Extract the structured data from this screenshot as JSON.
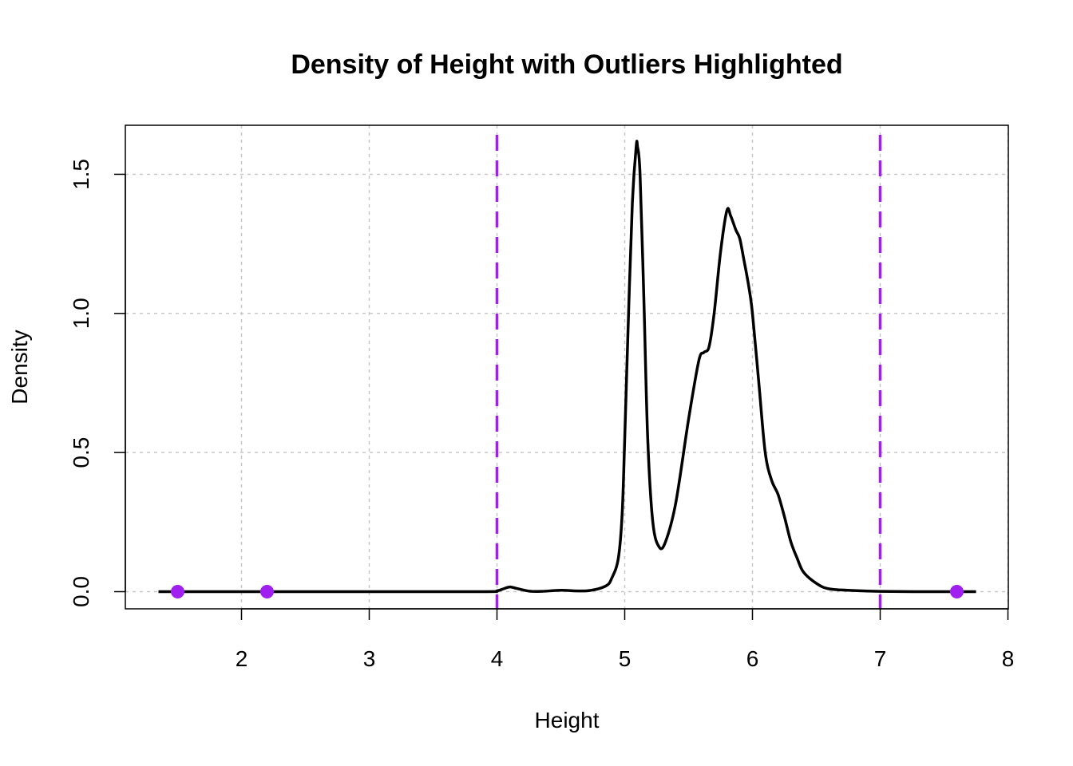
{
  "chart_data": {
    "type": "line",
    "title": "Density of Height with Outliers Highlighted",
    "xlabel": "Height",
    "ylabel": "Density",
    "xlim": [
      1.1,
      8.0
    ],
    "ylim": [
      -0.06,
      1.68
    ],
    "x_ticks": [
      2,
      3,
      4,
      5,
      6,
      7,
      8
    ],
    "x_tick_labels": [
      "2",
      "3",
      "4",
      "5",
      "6",
      "7",
      "8"
    ],
    "y_ticks": [
      0.0,
      0.5,
      1.0,
      1.5
    ],
    "y_tick_labels": [
      "0.0",
      "0.5",
      "1.0",
      "1.5"
    ],
    "grid": true,
    "series": [
      {
        "x": [
          1.35,
          2.0,
          3.0,
          3.9,
          4.0,
          4.05,
          4.1,
          4.15,
          4.25,
          4.35,
          4.5,
          4.7,
          4.85,
          4.9,
          4.95,
          4.98,
          5.0,
          5.03,
          5.06,
          5.09,
          5.1,
          5.12,
          5.15,
          5.18,
          5.22,
          5.27,
          5.32,
          5.4,
          5.5,
          5.58,
          5.62,
          5.66,
          5.7,
          5.75,
          5.8,
          5.83,
          5.87,
          5.9,
          5.93,
          5.97,
          6.0,
          6.05,
          6.1,
          6.15,
          6.2,
          6.25,
          6.3,
          6.35,
          6.4,
          6.5,
          6.6,
          6.8,
          7.0,
          7.3,
          7.75
        ],
        "y": [
          0.0,
          0.0,
          0.0,
          0.0,
          0.003,
          0.01,
          0.017,
          0.012,
          0.002,
          0.001,
          0.005,
          0.003,
          0.02,
          0.05,
          0.12,
          0.28,
          0.55,
          1.0,
          1.4,
          1.6,
          1.6,
          1.5,
          1.05,
          0.55,
          0.25,
          0.16,
          0.18,
          0.32,
          0.62,
          0.83,
          0.86,
          0.88,
          1.0,
          1.22,
          1.37,
          1.35,
          1.3,
          1.27,
          1.2,
          1.1,
          1.0,
          0.75,
          0.5,
          0.4,
          0.35,
          0.27,
          0.18,
          0.12,
          0.07,
          0.03,
          0.01,
          0.004,
          0.001,
          0.0,
          0.0
        ]
      }
    ],
    "thresholds": [
      4,
      7
    ],
    "outliers": [
      {
        "x": 1.5,
        "y": 0.0
      },
      {
        "x": 2.2,
        "y": 0.0
      },
      {
        "x": 7.6,
        "y": 0.0
      }
    ],
    "colors": {
      "line": "#000000",
      "outlier": "#a020f0",
      "threshold": "#a020f0",
      "grid": "#c8c8c8"
    }
  }
}
